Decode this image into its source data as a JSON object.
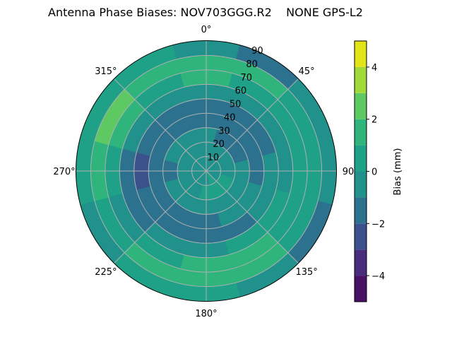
{
  "chart_data": {
    "type": "heatmap",
    "subtype": "polar-filled-contour",
    "title": "Antenna Phase Biases: NOV703GGG.R2    NONE GPS-L2",
    "colorbar": {
      "label": "Bias (mm)",
      "range": [
        -5,
        5
      ],
      "levels": [
        -5,
        -4,
        -3,
        -2,
        -1,
        0,
        1,
        2,
        3,
        4,
        5
      ],
      "ticks": [
        -4,
        -2,
        0,
        2,
        4
      ],
      "tick_labels": [
        "−4",
        "−2",
        "0",
        "2",
        "4"
      ],
      "colors": [
        "#471164",
        "#472d7b",
        "#3b518b",
        "#2c718e",
        "#21918c",
        "#1fa187",
        "#2fb47c",
        "#5ec962",
        "#a0da39",
        "#e2e418"
      ],
      "colormap": "viridis"
    },
    "theta_direction": "clockwise",
    "theta_zero": "top",
    "theta_ticks": [
      0,
      45,
      90,
      135,
      180,
      225,
      270,
      315
    ],
    "theta_tick_labels": [
      "0°",
      "45°",
      "90",
      "135°",
      "180°",
      "225°",
      "270°",
      "315°"
    ],
    "r_range": [
      0,
      90
    ],
    "r_ticks": [
      10,
      20,
      30,
      40,
      50,
      60,
      70,
      80,
      90
    ],
    "r_tick_labels": [
      "10",
      "20",
      "30",
      "40",
      "50",
      "60",
      "70",
      "80",
      "90"
    ],
    "grid": true,
    "azimuth": [
      0,
      30,
      60,
      90,
      120,
      150,
      180,
      210,
      240,
      270,
      300,
      330
    ],
    "zenith": [
      5,
      15,
      25,
      35,
      45,
      55,
      65,
      75,
      85
    ],
    "values": [
      [
        -0.5,
        -0.5,
        -0.5,
        -0.5,
        -0.5,
        0.5,
        -0.5,
        -0.5,
        -0.5,
        -0.5,
        -0.5,
        -0.5
      ],
      [
        -0.5,
        -0.5,
        -0.5,
        -0.5,
        0.5,
        0.5,
        0.5,
        -0.5,
        -0.5,
        -0.5,
        -0.5,
        -0.5
      ],
      [
        -0.5,
        -1.5,
        -1.5,
        -0.5,
        -0.5,
        -0.5,
        -0.5,
        -0.5,
        -0.5,
        -1.5,
        -0.5,
        -0.5
      ],
      [
        -1.5,
        -1.5,
        -1.5,
        -1.5,
        -0.5,
        -0.5,
        -1.5,
        -1.5,
        -1.5,
        -1.5,
        -1.5,
        -1.5
      ],
      [
        -1.5,
        -1.5,
        -1.5,
        -0.5,
        -0.5,
        -1.5,
        -1.5,
        -1.5,
        -1.5,
        -2.5,
        -1.5,
        -1.5
      ],
      [
        -0.5,
        -0.5,
        -0.5,
        -0.5,
        0.5,
        0.5,
        -0.5,
        -0.5,
        -1.5,
        -1.5,
        -0.5,
        -0.5
      ],
      [
        1.5,
        0.5,
        0.5,
        0.5,
        0.5,
        1.5,
        1.5,
        0.5,
        -0.5,
        0.5,
        1.5,
        0.5
      ],
      [
        1.5,
        1.5,
        0.5,
        0.5,
        0.5,
        1.5,
        1.5,
        1.5,
        0.5,
        1.5,
        2.5,
        1.5
      ],
      [
        -0.5,
        -1.5,
        -0.5,
        -0.5,
        -1.5,
        -0.5,
        0.5,
        0.5,
        -0.5,
        0.5,
        0.5,
        0.5
      ]
    ]
  }
}
